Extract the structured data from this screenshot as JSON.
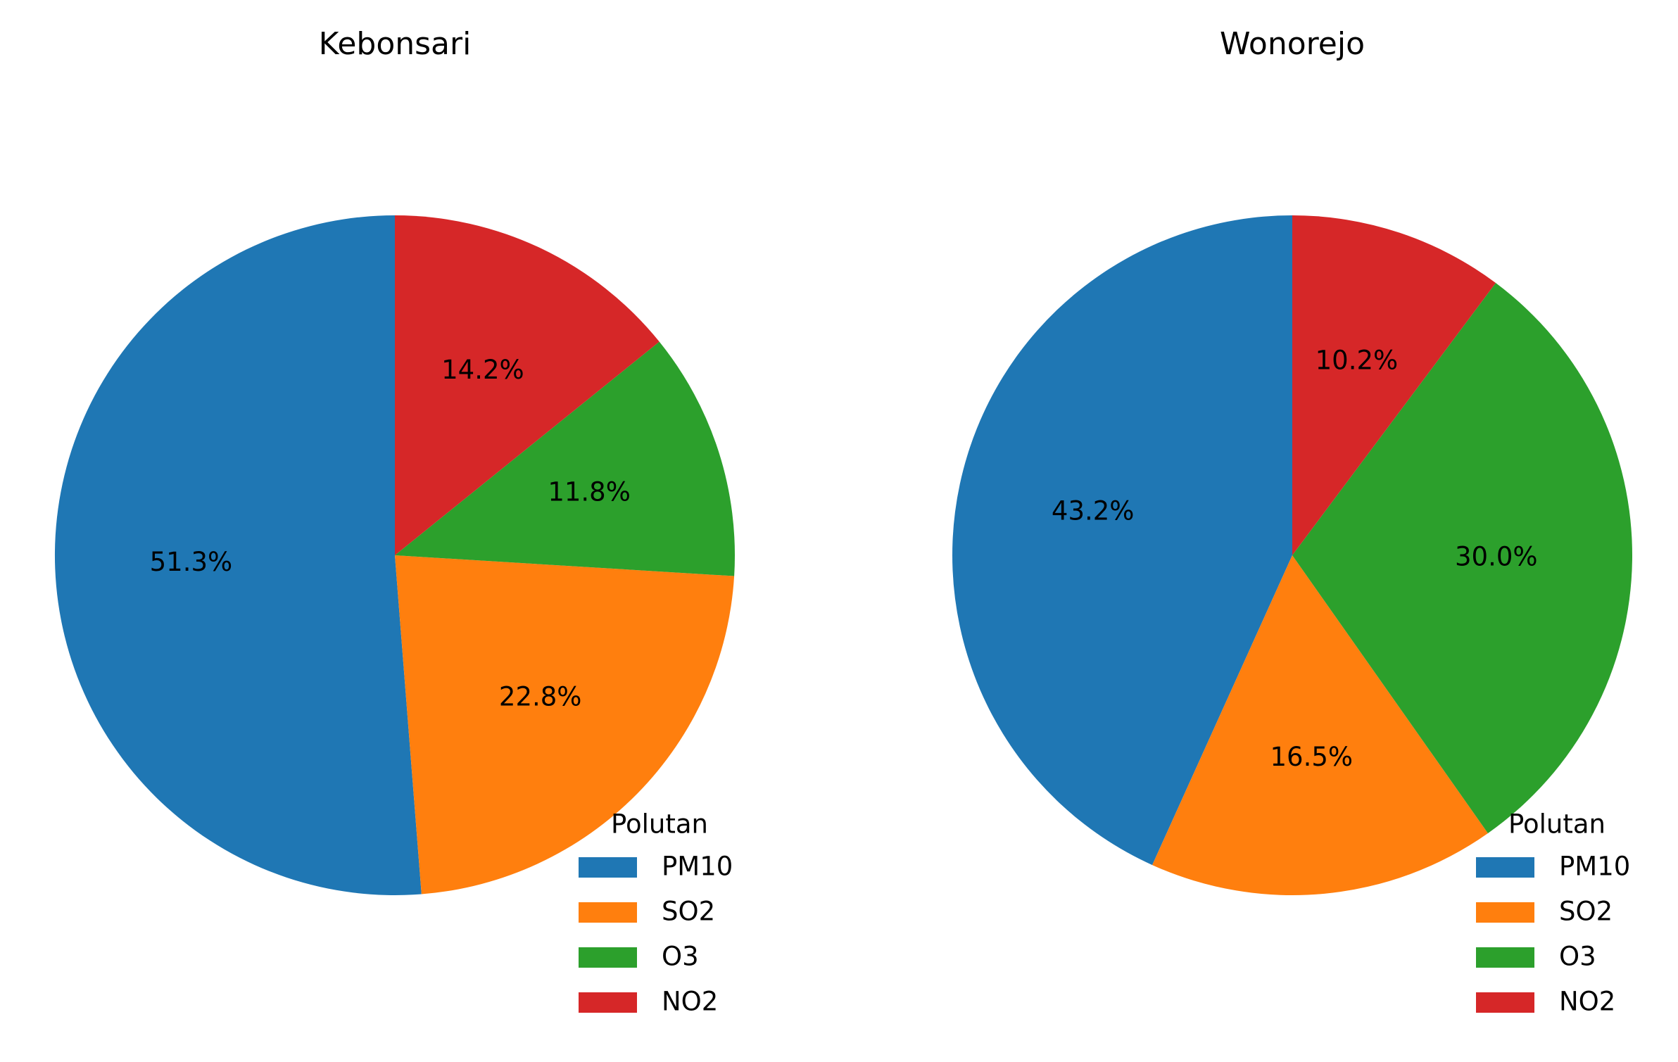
{
  "chart_data": [
    {
      "type": "pie",
      "title": "Kebonsari",
      "categories": [
        "PM10",
        "SO2",
        "O3",
        "NO2"
      ],
      "values": [
        51.3,
        22.8,
        11.8,
        14.2
      ],
      "value_labels": [
        "51.3%",
        "22.8%",
        "11.8%",
        "14.2%"
      ],
      "colors": [
        "#1f77b4",
        "#ff7f0e",
        "#2ca02c",
        "#d62728"
      ],
      "start_angle_deg": 90,
      "direction": "counterclockwise",
      "legend": {
        "title": "Polutan",
        "entries": [
          "PM10",
          "SO2",
          "O3",
          "NO2"
        ],
        "placement": "lower-right"
      }
    },
    {
      "type": "pie",
      "title": "Wonorejo",
      "categories": [
        "PM10",
        "SO2",
        "O3",
        "NO2"
      ],
      "values": [
        43.2,
        16.5,
        30.0,
        10.2
      ],
      "value_labels": [
        "43.2%",
        "16.5%",
        "30.0%",
        "10.2%"
      ],
      "colors": [
        "#1f77b4",
        "#ff7f0e",
        "#2ca02c",
        "#d62728"
      ],
      "start_angle_deg": 90,
      "direction": "counterclockwise",
      "legend": {
        "title": "Polutan",
        "entries": [
          "PM10",
          "SO2",
          "O3",
          "NO2"
        ],
        "placement": "lower-right"
      }
    }
  ]
}
